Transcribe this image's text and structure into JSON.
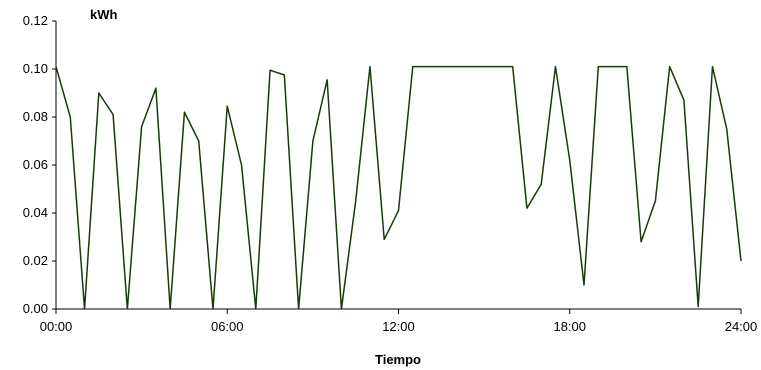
{
  "chart_data": {
    "type": "line",
    "title": "",
    "ylabel": "kWh",
    "xlabel": "Tiempo",
    "xlim": [
      0,
      24
    ],
    "ylim": [
      0,
      0.12
    ],
    "x_tick_values": [
      0,
      6,
      12,
      18,
      24
    ],
    "x_tick_labels": [
      "00:00",
      "06:00",
      "12:00",
      "18:00",
      "24:00"
    ],
    "y_tick_values": [
      0,
      0.02,
      0.04,
      0.06,
      0.08,
      0.1,
      0.12
    ],
    "y_tick_labels": [
      "0.00",
      "0.02",
      "0.04",
      "0.06",
      "0.08",
      "0.10",
      "0.12"
    ],
    "grid": false,
    "line_color": "#1a3a0a",
    "series": [
      {
        "x": [
          0,
          0.5,
          1,
          1.5,
          2,
          2.5,
          3,
          3.5,
          4,
          4.5,
          5,
          5.5,
          6,
          6.5,
          7,
          7.5,
          8,
          8.5,
          9,
          9.5,
          10,
          10.5,
          11,
          11.5,
          12,
          12.5,
          13,
          13.5,
          14,
          14.5,
          15,
          15.5,
          16,
          16.5,
          17,
          17.5,
          18,
          18.5,
          19,
          19.5,
          20,
          20.5,
          21,
          21.5,
          22,
          22.5,
          23,
          23.5,
          24
        ],
        "values": [
          0.101,
          0.08,
          0,
          0.09,
          0.081,
          0,
          0.076,
          0.092,
          0,
          0.082,
          0.07,
          0,
          0.0845,
          0.06,
          0,
          0.0995,
          0.0975,
          0,
          0.07,
          0.0955,
          0,
          0.045,
          0.101,
          0.029,
          0.041,
          0.101,
          0.101,
          0.101,
          0.101,
          0.101,
          0.101,
          0.101,
          0.101,
          0.042,
          0.052,
          0.101,
          0.062,
          0.01,
          0.101,
          0.101,
          0.101,
          0.028,
          0.045,
          0.101,
          0.087,
          0.001,
          0.101,
          0.075,
          0.02
        ]
      }
    ]
  }
}
